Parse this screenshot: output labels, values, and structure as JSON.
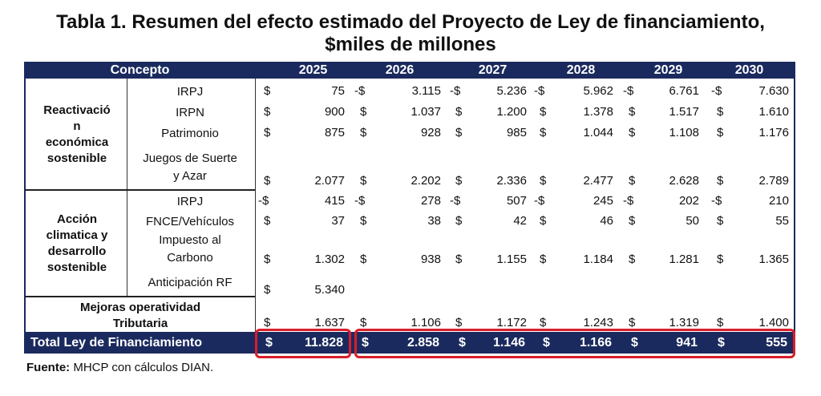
{
  "title": {
    "line1": "Tabla 1. Resumen del efecto estimado del Proyecto de Ley de financiamiento,",
    "line2": "$miles de millones"
  },
  "header": {
    "concepto": "Concepto",
    "years": [
      "2025",
      "2026",
      "2027",
      "2028",
      "2029",
      "2030"
    ]
  },
  "groups": [
    {
      "label": [
        "Reactivació",
        "n",
        "económica",
        "sostenible"
      ]
    },
    {
      "label": [
        "Acción",
        "climatica y",
        "desarrollo",
        "sostenible"
      ]
    },
    {
      "label": [
        "Mejoras operatividad",
        "Tributaria"
      ]
    }
  ],
  "rows": [
    {
      "concept": [
        "IRPJ"
      ],
      "cells": [
        [
          "$",
          "75"
        ],
        [
          "-$",
          "3.115"
        ],
        [
          "-$",
          "5.236"
        ],
        [
          "-$",
          "5.962"
        ],
        [
          "-$",
          "6.761"
        ],
        [
          "-$",
          "7.630"
        ]
      ]
    },
    {
      "concept": [
        "IRPN"
      ],
      "cells": [
        [
          "$",
          "900"
        ],
        [
          "$",
          "1.037"
        ],
        [
          "$",
          "1.200"
        ],
        [
          "$",
          "1.378"
        ],
        [
          "$",
          "1.517"
        ],
        [
          "$",
          "1.610"
        ]
      ]
    },
    {
      "concept": [
        "Patrimonio"
      ],
      "cells": [
        [
          "$",
          "875"
        ],
        [
          "$",
          "928"
        ],
        [
          "$",
          "985"
        ],
        [
          "$",
          "1.044"
        ],
        [
          "$",
          "1.108"
        ],
        [
          "$",
          "1.176"
        ]
      ]
    },
    {
      "concept": [
        "Juegos de Suerte",
        "y Azar"
      ],
      "cells": [
        [
          "$",
          "2.077"
        ],
        [
          "$",
          "2.202"
        ],
        [
          "$",
          "2.336"
        ],
        [
          "$",
          "2.477"
        ],
        [
          "$",
          "2.628"
        ],
        [
          "$",
          "2.789"
        ]
      ]
    },
    {
      "concept": [
        "IRPJ"
      ],
      "cells": [
        [
          "-$",
          "415"
        ],
        [
          "-$",
          "278"
        ],
        [
          "-$",
          "507"
        ],
        [
          "-$",
          "245"
        ],
        [
          "-$",
          "202"
        ],
        [
          "-$",
          "210"
        ]
      ]
    },
    {
      "concept": [
        "FNCE/Vehículos"
      ],
      "cells": [
        [
          "$",
          "37"
        ],
        [
          "$",
          "38"
        ],
        [
          "$",
          "42"
        ],
        [
          "$",
          "46"
        ],
        [
          "$",
          "50"
        ],
        [
          "$",
          "55"
        ]
      ]
    },
    {
      "concept": [
        "Impuesto al",
        "Carbono"
      ],
      "cells": [
        [
          "$",
          "1.302"
        ],
        [
          "$",
          "938"
        ],
        [
          "$",
          "1.155"
        ],
        [
          "$",
          "1.184"
        ],
        [
          "$",
          "1.281"
        ],
        [
          "$",
          "1.365"
        ]
      ]
    },
    {
      "concept": [
        "Anticipación RF"
      ],
      "cells": [
        [
          "$",
          "5.340"
        ],
        [
          "",
          ""
        ],
        [
          "",
          ""
        ],
        [
          "",
          ""
        ],
        [
          "",
          ""
        ],
        [
          "",
          ""
        ]
      ]
    },
    {
      "concept": [],
      "cells": [
        [
          "$",
          "1.637"
        ],
        [
          "$",
          "1.106"
        ],
        [
          "$",
          "1.172"
        ],
        [
          "$",
          "1.243"
        ],
        [
          "$",
          "1.319"
        ],
        [
          "$",
          "1.400"
        ]
      ]
    }
  ],
  "total": {
    "label": "Total Ley de Financiamiento",
    "cells": [
      [
        "$",
        "11.828"
      ],
      [
        "$",
        "2.858"
      ],
      [
        "$",
        "1.146"
      ],
      [
        "$",
        "1.166"
      ],
      [
        "$",
        "941"
      ],
      [
        "$",
        "555"
      ]
    ]
  },
  "source": {
    "label": "Fuente:",
    "text": " MHCP con cálculos DIAN."
  },
  "colors": {
    "navy": "#1b2a5e",
    "highlight": "#d81e2a"
  }
}
